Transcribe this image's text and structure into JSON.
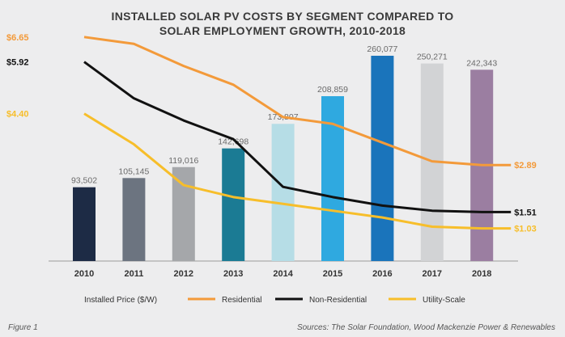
{
  "chart_data": {
    "type": "bar",
    "title_lines": [
      "INSTALLED SOLAR PV COSTS BY SEGMENT COMPARED TO",
      "SOLAR EMPLOYMENT GROWTH, 2010-2018"
    ],
    "categories": [
      "2010",
      "2011",
      "2012",
      "2013",
      "2014",
      "2015",
      "2016",
      "2017",
      "2018"
    ],
    "employment": {
      "values": [
        93502,
        105145,
        119016,
        142698,
        173807,
        208859,
        260077,
        250271,
        242343
      ],
      "labels": [
        "93,502",
        "105,145",
        "119,016",
        "142,698",
        "173,807",
        "208,859",
        "260,077",
        "250,271",
        "242,343"
      ],
      "colors": [
        "#1d2b45",
        "#6c7480",
        "#a5a7aa",
        "#1b7b94",
        "#b6dde6",
        "#2fa9e0",
        "#1a74bb",
        "#d2d3d5",
        "#9b7ea1"
      ],
      "ylim": [
        0,
        300000
      ]
    },
    "price_series": [
      {
        "name": "Residential",
        "color": "#f39a3a",
        "values": [
          6.65,
          6.45,
          5.8,
          5.25,
          4.3,
          4.1,
          3.55,
          3.0,
          2.89
        ],
        "start_label": "$6.65",
        "end_label": "$2.89"
      },
      {
        "name": "Non-Residential",
        "color": "#111111",
        "values": [
          5.92,
          4.85,
          4.2,
          3.65,
          2.25,
          1.95,
          1.7,
          1.55,
          1.51
        ],
        "start_label": "$5.92",
        "end_label": "$1.51"
      },
      {
        "name": "Utility-Scale",
        "color": "#f7be2a",
        "values": [
          4.4,
          3.5,
          2.3,
          1.95,
          1.75,
          1.55,
          1.35,
          1.08,
          1.03
        ],
        "start_label": "$4.40",
        "end_label": "$1.03"
      }
    ],
    "price_ylim": [
      0,
      7.5
    ],
    "legend_title": "Installed Price ($/W)",
    "legend_placement": "bottom",
    "grid": false
  },
  "footer": {
    "figure": "Figure 1",
    "sources": "Sources: The Solar Foundation, Wood Mackenzie Power & Renewables"
  }
}
